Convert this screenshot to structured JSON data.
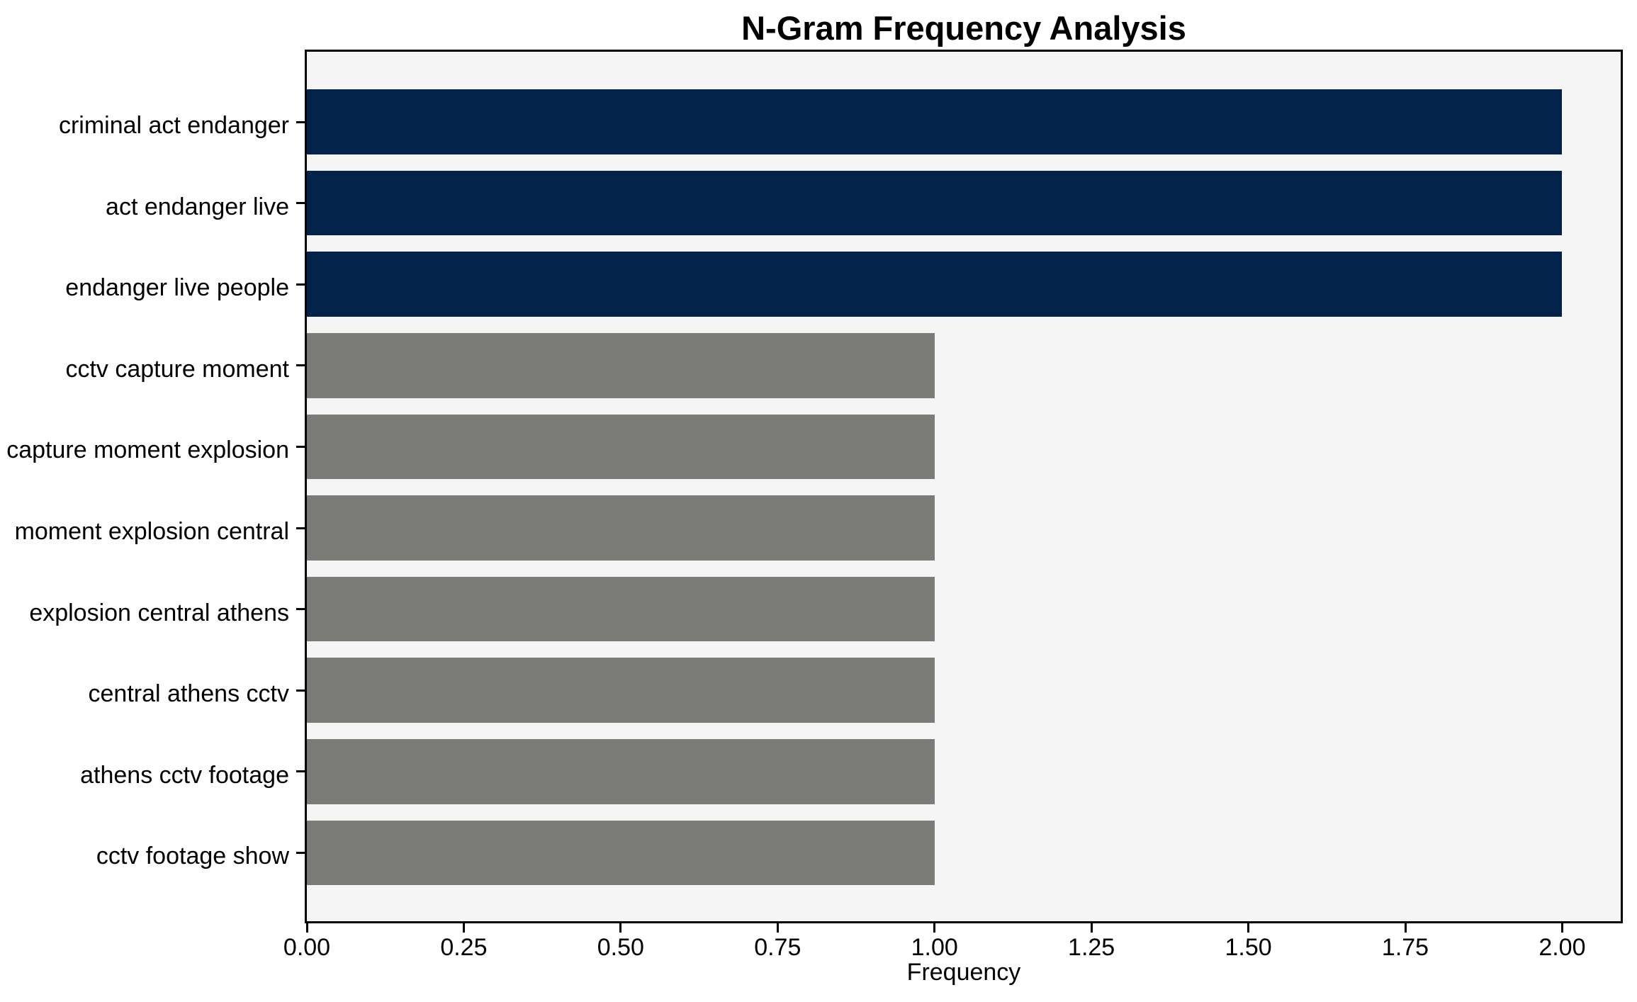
{
  "chart_data": {
    "type": "bar",
    "orientation": "horizontal",
    "title": "N-Gram Frequency Analysis",
    "xlabel": "Frequency",
    "ylabel": "",
    "categories": [
      "criminal act endanger",
      "act endanger live",
      "endanger live people",
      "cctv capture moment",
      "capture moment explosion",
      "moment explosion central",
      "explosion central athens",
      "central athens cctv",
      "athens cctv footage",
      "cctv footage show"
    ],
    "values": [
      2,
      2,
      2,
      1,
      1,
      1,
      1,
      1,
      1,
      1
    ],
    "bar_colors": [
      "#04234b",
      "#04234b",
      "#04234b",
      "#7b7b77",
      "#7b7b77",
      "#7b7b77",
      "#7b7b77",
      "#7b7b77",
      "#7b7b77",
      "#7b7b77"
    ],
    "xlim": [
      0,
      2.1
    ],
    "xticks": [
      {
        "label": "0.00",
        "value": 0
      },
      {
        "label": "0.25",
        "value": 0.25
      },
      {
        "label": "0.50",
        "value": 0.5
      },
      {
        "label": "0.75",
        "value": 0.75
      },
      {
        "label": "1.00",
        "value": 1
      },
      {
        "label": "1.25",
        "value": 1.25
      },
      {
        "label": "1.50",
        "value": 1.5
      },
      {
        "label": "1.75",
        "value": 1.75
      },
      {
        "label": "2.00",
        "value": 2
      }
    ],
    "grid": false,
    "legend": false,
    "plot_background": "#f5f5f6"
  }
}
